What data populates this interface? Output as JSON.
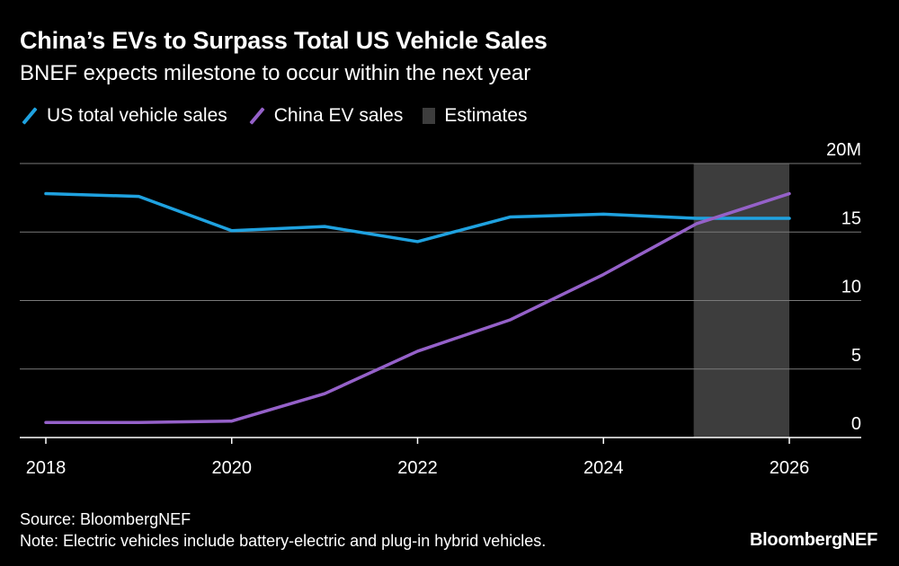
{
  "title": "China’s EVs to Surpass Total US Vehicle Sales",
  "subtitle": "BNEF expects milestone to occur within the next year",
  "footer": {
    "source": "Source: BloombergNEF",
    "note": "Note: Electric vehicles include battery-electric and plug-in hybrid vehicles."
  },
  "brand": "BloombergNEF",
  "legend": {
    "us_label": "US total vehicle sales",
    "china_label": "China EV sales",
    "estimates_label": "Estimates"
  },
  "colors": {
    "us": "#1fa2e0",
    "china": "#9561c9",
    "estimates": "#3d3d3d",
    "grid": "#7a7a7a"
  },
  "chart_data": {
    "type": "line",
    "x": [
      2018,
      2019,
      2020,
      2021,
      2022,
      2023,
      2024,
      2025,
      2026
    ],
    "series": [
      {
        "name": "US total vehicle sales",
        "values": [
          17.8,
          17.6,
          15.1,
          15.4,
          14.3,
          16.1,
          16.3,
          16.0,
          16.0
        ]
      },
      {
        "name": "China EV sales",
        "values": [
          1.1,
          1.1,
          1.2,
          3.2,
          6.3,
          8.6,
          11.9,
          15.6,
          17.8
        ]
      }
    ],
    "estimates_range": [
      2025,
      2026
    ],
    "xlim": [
      2018,
      2026
    ],
    "ylim": [
      0,
      20
    ],
    "y_ticks": [
      0,
      5,
      10,
      15,
      20
    ],
    "y_tick_labels": [
      "0",
      "5",
      "10",
      "15",
      "20M"
    ],
    "x_ticks": [
      2018,
      2020,
      2022,
      2024,
      2026
    ],
    "x_tick_labels": [
      "2018",
      "2020",
      "2022",
      "2024",
      "2026"
    ],
    "grid": true,
    "legend_position": "top-left"
  }
}
